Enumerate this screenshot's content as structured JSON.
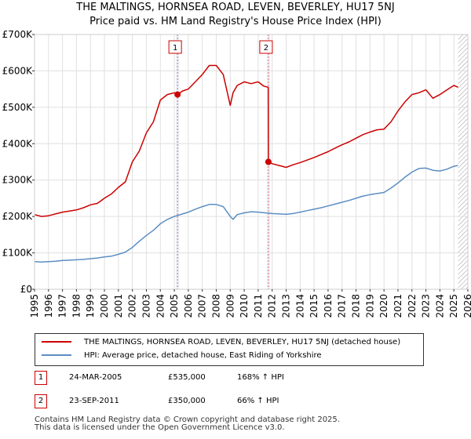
{
  "chart_data": {
    "type": "line",
    "title": "THE MALTINGS, HORNSEA ROAD, LEVEN, BEVERLEY, HU17 5NJ",
    "subtitle": "Price paid vs. HM Land Registry's House Price Index (HPI)",
    "xlim": [
      1995,
      2026
    ],
    "ylim": [
      0,
      700000
    ],
    "x_ticks": [
      1995,
      1996,
      1997,
      1998,
      1999,
      2000,
      2001,
      2002,
      2003,
      2004,
      2005,
      2006,
      2007,
      2008,
      2009,
      2010,
      2011,
      2012,
      2013,
      2014,
      2015,
      2016,
      2017,
      2018,
      2019,
      2020,
      2021,
      2022,
      2023,
      2024,
      2025,
      2026
    ],
    "y_ticks": [
      {
        "value": 0,
        "label": "£0"
      },
      {
        "value": 100000,
        "label": "£100K"
      },
      {
        "value": 200000,
        "label": "£200K"
      },
      {
        "value": 300000,
        "label": "£300K"
      },
      {
        "value": 400000,
        "label": "£400K"
      },
      {
        "value": 500000,
        "label": "£500K"
      },
      {
        "value": 600000,
        "label": "£600K"
      },
      {
        "value": 700000,
        "label": "£700K"
      }
    ],
    "grid": true,
    "series": [
      {
        "name": "THE MALTINGS, HORNSEA ROAD, LEVEN, BEVERLEY, HU17 5NJ (detached house)",
        "color": "#cc0000",
        "x": [
          1995.0,
          1995.5,
          1996.0,
          1996.5,
          1997.0,
          1997.5,
          1998.0,
          1998.5,
          1999.0,
          1999.5,
          2000.0,
          2000.5,
          2001.0,
          2001.5,
          2002.0,
          2002.5,
          2003.0,
          2003.5,
          2004.0,
          2004.5,
          2005.0,
          2005.23,
          2005.6,
          2006.0,
          2006.5,
          2007.0,
          2007.5,
          2008.0,
          2008.5,
          2009.0,
          2009.2,
          2009.5,
          2010.0,
          2010.5,
          2011.0,
          2011.4,
          2011.72,
          2011.73,
          2012.0,
          2012.5,
          2013.0,
          2013.5,
          2014.0,
          2014.5,
          2015.0,
          2015.5,
          2016.0,
          2016.5,
          2017.0,
          2017.5,
          2018.0,
          2018.5,
          2019.0,
          2019.5,
          2020.0,
          2020.5,
          2021.0,
          2021.5,
          2022.0,
          2022.5,
          2023.0,
          2023.5,
          2024.0,
          2024.5,
          2025.0,
          2025.3
        ],
        "values": [
          205000,
          200000,
          202000,
          207000,
          212000,
          215000,
          218000,
          224000,
          232000,
          236000,
          250000,
          262000,
          280000,
          295000,
          350000,
          380000,
          430000,
          460000,
          520000,
          535000,
          540000,
          535000,
          545000,
          550000,
          570000,
          590000,
          615000,
          615000,
          590000,
          505000,
          540000,
          560000,
          570000,
          565000,
          570000,
          558000,
          555000,
          350000,
          345000,
          340000,
          335000,
          342000,
          348000,
          355000,
          362000,
          370000,
          378000,
          388000,
          397000,
          405000,
          415000,
          425000,
          432000,
          438000,
          440000,
          460000,
          490000,
          515000,
          535000,
          540000,
          548000,
          525000,
          535000,
          548000,
          560000,
          555000
        ]
      },
      {
        "name": "HPI: Average price, detached house, East Riding of Yorkshire",
        "color": "#5b8ec4",
        "x": [
          1995.0,
          1995.5,
          1996.0,
          1996.5,
          1997.0,
          1997.5,
          1998.0,
          1998.5,
          1999.0,
          1999.5,
          2000.0,
          2000.5,
          2001.0,
          2001.5,
          2002.0,
          2002.5,
          2003.0,
          2003.5,
          2004.0,
          2004.5,
          2005.0,
          2005.5,
          2006.0,
          2006.5,
          2007.0,
          2007.5,
          2008.0,
          2008.5,
          2009.0,
          2009.2,
          2009.5,
          2010.0,
          2010.5,
          2011.0,
          2011.5,
          2012.0,
          2012.5,
          2013.0,
          2013.5,
          2014.0,
          2014.5,
          2015.0,
          2015.5,
          2016.0,
          2016.5,
          2017.0,
          2017.5,
          2018.0,
          2018.5,
          2019.0,
          2019.5,
          2020.0,
          2020.5,
          2021.0,
          2021.5,
          2022.0,
          2022.5,
          2023.0,
          2023.5,
          2024.0,
          2024.5,
          2025.0,
          2025.3
        ],
        "values": [
          76000,
          75000,
          76000,
          77000,
          79000,
          80000,
          81000,
          82000,
          84000,
          86000,
          89000,
          91000,
          96000,
          102000,
          115000,
          132000,
          148000,
          162000,
          180000,
          192000,
          200000,
          206000,
          212000,
          220000,
          227000,
          233000,
          233000,
          227000,
          200000,
          192000,
          205000,
          210000,
          213000,
          212000,
          210000,
          208000,
          207000,
          206000,
          208000,
          212000,
          216000,
          220000,
          224000,
          229000,
          234000,
          239000,
          244000,
          250000,
          256000,
          260000,
          263000,
          266000,
          278000,
          292000,
          308000,
          322000,
          332000,
          333000,
          327000,
          325000,
          330000,
          338000,
          340000
        ]
      }
    ],
    "transactions": [
      {
        "label": "1",
        "x": 2005.23,
        "value": 535000,
        "date": "24-MAR-2005",
        "price": "£535,000",
        "hpi": "168% ↑ HPI"
      },
      {
        "label": "2",
        "x": 2011.73,
        "value": 350000,
        "date": "23-SEP-2011",
        "price": "£350,000",
        "hpi": "66% ↑ HPI"
      }
    ],
    "hatch_from": 2025.3
  },
  "footer": {
    "line1": "Contains HM Land Registry data © Crown copyright and database right 2025.",
    "line2": "This data is licensed under the Open Government Licence v3.0."
  }
}
